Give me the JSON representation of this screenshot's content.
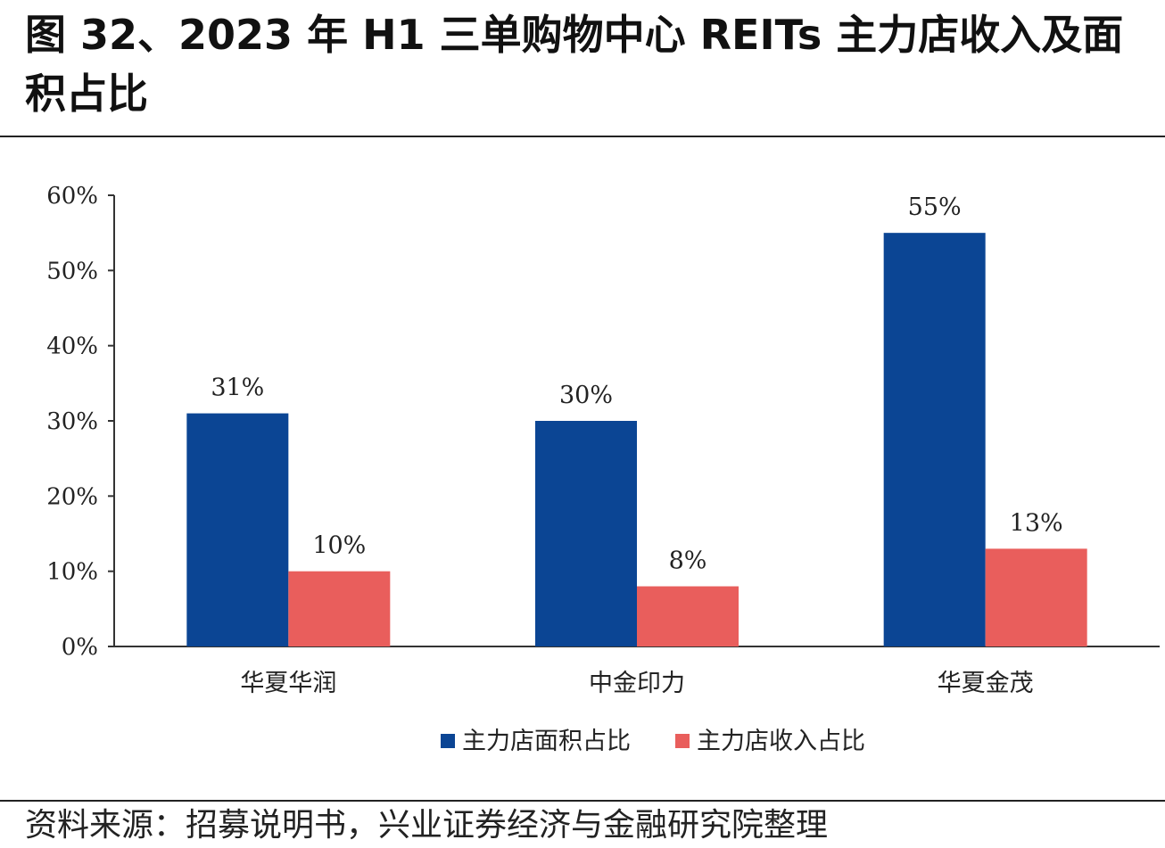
{
  "header": {
    "title": "图 32、2023 年 H1 三单购物中心 REITs 主力店收入及面积占比"
  },
  "footer": {
    "source": "资料来源：招募说明书，兴业证券经济与金融研究院整理"
  },
  "chart_data": {
    "type": "bar",
    "categories": [
      "华夏华润",
      "中金印力",
      "华夏金茂"
    ],
    "series": [
      {
        "name": "主力店面积占比",
        "values": [
          31,
          30,
          55
        ],
        "labels": [
          "31%",
          "30%",
          "55%"
        ],
        "color": "#0b4594"
      },
      {
        "name": "主力店收入占比",
        "values": [
          10,
          8,
          13
        ],
        "labels": [
          "10%",
          "8%",
          "13%"
        ],
        "color": "#e95e5c"
      }
    ],
    "y_ticks": [
      "0%",
      "10%",
      "20%",
      "30%",
      "40%",
      "50%",
      "60%"
    ],
    "ylim": [
      0,
      60
    ],
    "grid": false,
    "legend_position": "bottom-center"
  }
}
